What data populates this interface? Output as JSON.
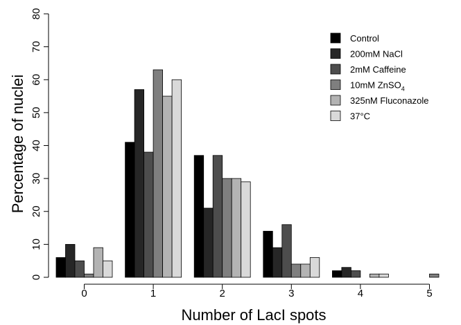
{
  "chart_data": {
    "type": "bar",
    "title": "",
    "xlabel": "Number of LacI spots",
    "ylabel": "Percentage of nuclei",
    "ylim": [
      0,
      80
    ],
    "yticks": [
      0,
      10,
      20,
      30,
      40,
      50,
      60,
      70,
      80
    ],
    "categories": [
      "0",
      "1",
      "2",
      "3",
      "4",
      "5"
    ],
    "legend_position": "top-right",
    "grid": false,
    "series": [
      {
        "name": "Control",
        "color": "#000000",
        "values": [
          6,
          41,
          37,
          14,
          2,
          0
        ]
      },
      {
        "name": "200mM NaCl",
        "color": "#262626",
        "values": [
          10,
          57,
          21,
          9,
          3,
          0
        ]
      },
      {
        "name": "2mM Caffeine",
        "color": "#4d4d4d",
        "values": [
          5,
          38,
          37,
          16,
          2,
          0
        ]
      },
      {
        "name": "10mM ZnSO4",
        "name_main": "10mM ZnSO",
        "name_sub": "4",
        "color": "#7f7f7f",
        "values": [
          1,
          63,
          30,
          4,
          0,
          1
        ]
      },
      {
        "name": "325nM Fluconazole",
        "color": "#b3b3b3",
        "values": [
          9,
          55,
          30,
          4,
          1,
          0
        ]
      },
      {
        "name": "37°C",
        "color": "#d9d9d9",
        "values": [
          5,
          60,
          29,
          6,
          1,
          0
        ]
      }
    ]
  }
}
